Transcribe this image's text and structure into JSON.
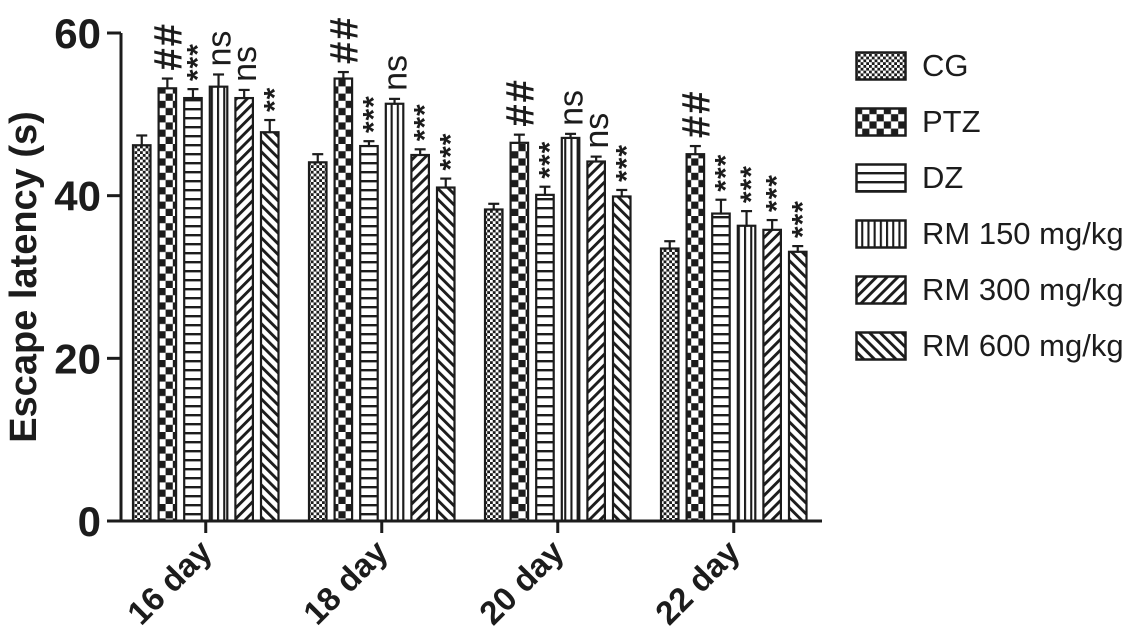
{
  "figure": {
    "background": "#ffffff",
    "ink_color": "#1c1c1c"
  },
  "chart_data": {
    "type": "bar",
    "title": "",
    "xlabel": "",
    "ylabel": "Escape latency (s)",
    "ylim": [
      0,
      60
    ],
    "yticks": [
      0,
      20,
      40,
      60
    ],
    "grid": false,
    "legend_position": "right",
    "error_bars": "upper SEM whiskers with caps",
    "categories": [
      "16 day",
      "18 day",
      "20 day",
      "22 day"
    ],
    "series": [
      {
        "name": "CG",
        "pattern": "checker-fine",
        "values": [
          46.2,
          44.1,
          38.3,
          33.5
        ],
        "errors": [
          1.2,
          1.0,
          0.7,
          0.9
        ],
        "annotations": [
          "",
          "",
          "",
          ""
        ]
      },
      {
        "name": "PTZ",
        "pattern": "checker-large",
        "values": [
          53.2,
          54.4,
          46.5,
          45.1
        ],
        "errors": [
          1.2,
          0.8,
          1.0,
          1.0
        ],
        "annotations": [
          "##",
          "##",
          "##",
          "##"
        ]
      },
      {
        "name": "DZ",
        "pattern": "horizontal-lines",
        "values": [
          52.0,
          46.1,
          40.1,
          37.8
        ],
        "errors": [
          1.1,
          0.6,
          1.0,
          1.7
        ],
        "annotations": [
          "***",
          "***",
          "***",
          "***"
        ]
      },
      {
        "name": "RM 150 mg/kg",
        "pattern": "vertical-lines",
        "values": [
          53.4,
          51.3,
          47.1,
          36.3
        ],
        "errors": [
          1.5,
          0.6,
          0.5,
          1.8
        ],
        "annotations": [
          "ns",
          "ns",
          "ns",
          "***"
        ]
      },
      {
        "name": "RM 300 mg/kg",
        "pattern": "diagonal-up",
        "values": [
          52.0,
          45.0,
          44.2,
          35.8
        ],
        "errors": [
          1.0,
          0.7,
          0.6,
          1.2
        ],
        "annotations": [
          "ns",
          "***",
          "ns",
          "***"
        ]
      },
      {
        "name": "RM 600 mg/kg",
        "pattern": "diagonal-down",
        "values": [
          47.8,
          41.0,
          39.9,
          33.1
        ],
        "errors": [
          1.5,
          1.1,
          0.8,
          0.7
        ],
        "annotations": [
          "**",
          "***",
          "***",
          "***"
        ]
      }
    ]
  }
}
